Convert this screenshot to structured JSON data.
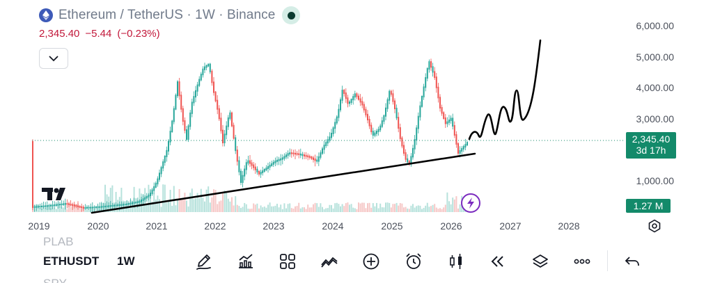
{
  "header": {
    "title": "Ethereum / TetherUS · 1W · Binance",
    "icon": "ethereum-logo-icon"
  },
  "quote": {
    "price": "2,345.40",
    "change": "−5.44",
    "change_pct": "(−0.23%)",
    "color": "#c2183a"
  },
  "price_axis": {
    "labels": [
      "6,000.00",
      "5,000.00",
      "4,000.00",
      "3,000.00",
      "1,000.00"
    ]
  },
  "time_axis": {
    "labels": [
      "2019",
      "2020",
      "2021",
      "2022",
      "2023",
      "2024",
      "2025",
      "2026",
      "2027",
      "2028"
    ]
  },
  "last_price_badge": {
    "price": "2,345.40",
    "countdown": "3d 17h",
    "color": "#138a6a"
  },
  "volume_badge": {
    "value": "1.27 M"
  },
  "toolbar": {
    "symbol_above": "PLAB",
    "symbol": "ETHUSDT",
    "symbol_below": "SPY",
    "interval": "1W",
    "tools": [
      {
        "name": "draw-tool-button",
        "icon": "pen-icon"
      },
      {
        "name": "indicators-button",
        "icon": "indicators-icon"
      },
      {
        "name": "templates-button",
        "icon": "grid-icon"
      },
      {
        "name": "compare-button",
        "icon": "compare-icon"
      },
      {
        "name": "add-button",
        "icon": "plus-circle-icon"
      },
      {
        "name": "alert-button",
        "icon": "alarm-icon"
      },
      {
        "name": "chart-type-button",
        "icon": "candles-icon"
      },
      {
        "name": "replay-button",
        "icon": "rewind-icon"
      },
      {
        "name": "layers-button",
        "icon": "layers-icon"
      },
      {
        "name": "more-button",
        "icon": "more-icon"
      },
      {
        "name": "undo-button",
        "icon": "undo-icon"
      }
    ]
  }
}
